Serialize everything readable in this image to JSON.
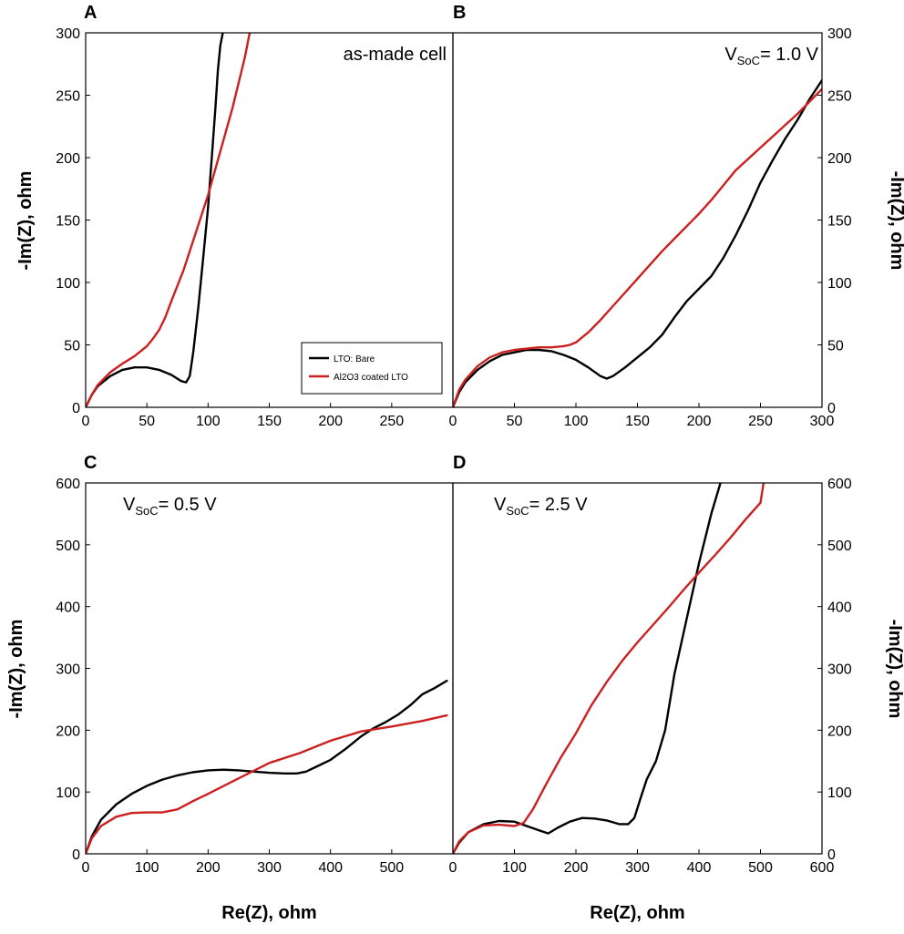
{
  "colors": {
    "bare": "#000000",
    "coated": "#cc1f1f",
    "frame": "#000000"
  },
  "shared": {
    "xlabel": "Re(Z), ohm",
    "ylabel": "-Im(Z), ohm",
    "legend_labels": [
      "LTO: Bare",
      "Al2O3 coated LTO"
    ]
  },
  "chart_data": [
    {
      "panel": "A",
      "type": "line",
      "annotation": "as-made cell",
      "annotation_sub": "",
      "xlim": [
        0,
        300
      ],
      "ylim": [
        0,
        300
      ],
      "xticks": [
        0,
        50,
        100,
        150,
        200,
        250
      ],
      "yticks": [
        0,
        50,
        100,
        150,
        200,
        250,
        300
      ],
      "ytick_side": "left",
      "xlabel_shown": false,
      "legend": "bottom-right",
      "series": [
        {
          "name": "LTO: Bare",
          "color": "#000000",
          "x": [
            0,
            5,
            10,
            20,
            30,
            40,
            50,
            60,
            70,
            78,
            82,
            85,
            88,
            92,
            96,
            100,
            103,
            106,
            108,
            110,
            112
          ],
          "y": [
            0,
            10,
            17,
            25,
            30,
            32,
            32,
            30,
            26,
            21,
            20,
            25,
            45,
            80,
            120,
            160,
            200,
            240,
            270,
            290,
            300
          ]
        },
        {
          "name": "Al2O3 coated LTO",
          "color": "#cc1f1f",
          "x": [
            0,
            5,
            10,
            20,
            30,
            40,
            50,
            55,
            60,
            65,
            70,
            80,
            90,
            100,
            110,
            120,
            130,
            134
          ],
          "y": [
            0,
            10,
            18,
            28,
            35,
            41,
            49,
            55,
            62,
            72,
            85,
            110,
            140,
            170,
            205,
            240,
            280,
            300
          ]
        }
      ]
    },
    {
      "panel": "B",
      "type": "line",
      "annotation": "V",
      "annotation_sub": "SoC",
      "annotation_rest": "= 1.0 V",
      "xlim": [
        0,
        300
      ],
      "ylim": [
        0,
        300
      ],
      "xticks": [
        0,
        50,
        100,
        150,
        200,
        250,
        300
      ],
      "yticks": [
        0,
        50,
        100,
        150,
        200,
        250,
        300
      ],
      "ytick_side": "right",
      "xlabel_shown": false,
      "legend": "none",
      "series": [
        {
          "name": "LTO: Bare",
          "color": "#000000",
          "x": [
            0,
            5,
            10,
            20,
            30,
            40,
            50,
            60,
            70,
            80,
            90,
            100,
            110,
            120,
            125,
            130,
            140,
            150,
            160,
            170,
            180,
            190,
            200,
            210,
            220,
            230,
            240,
            250,
            260,
            270,
            280,
            290,
            300
          ],
          "y": [
            0,
            12,
            20,
            30,
            37,
            42,
            44,
            46,
            46,
            45,
            42,
            38,
            32,
            25,
            23,
            25,
            32,
            40,
            48,
            58,
            72,
            85,
            95,
            105,
            120,
            138,
            158,
            180,
            198,
            215,
            230,
            247,
            262
          ]
        },
        {
          "name": "Al2O3 coated LTO",
          "color": "#cc1f1f",
          "x": [
            0,
            5,
            10,
            20,
            30,
            40,
            50,
            60,
            70,
            80,
            90,
            95,
            100,
            110,
            120,
            130,
            140,
            150,
            160,
            170,
            180,
            190,
            200,
            210,
            220,
            230,
            240,
            250,
            260,
            270,
            280,
            290,
            300
          ],
          "y": [
            0,
            14,
            22,
            33,
            40,
            44,
            46,
            47,
            48,
            48,
            49,
            50,
            52,
            60,
            70,
            81,
            92,
            103,
            114,
            125,
            135,
            145,
            155,
            166,
            178,
            190,
            199,
            208,
            217,
            226,
            235,
            245,
            255
          ]
        }
      ]
    },
    {
      "panel": "C",
      "type": "line",
      "annotation": "V",
      "annotation_sub": "SoC",
      "annotation_rest": "= 0.5 V",
      "xlim": [
        0,
        600
      ],
      "ylim": [
        0,
        600
      ],
      "xticks": [
        0,
        100,
        200,
        300,
        400,
        500
      ],
      "yticks": [
        0,
        100,
        200,
        300,
        400,
        500,
        600
      ],
      "ytick_side": "left",
      "xlabel_shown": true,
      "legend": "none",
      "series": [
        {
          "name": "LTO: Bare",
          "color": "#000000",
          "x": [
            0,
            10,
            25,
            50,
            75,
            100,
            125,
            150,
            175,
            200,
            225,
            250,
            275,
            300,
            325,
            345,
            360,
            375,
            400,
            425,
            450,
            470,
            490,
            510,
            530,
            550,
            570,
            590
          ],
          "y": [
            0,
            28,
            55,
            80,
            97,
            110,
            120,
            127,
            132,
            135,
            136,
            135,
            133,
            131,
            130,
            130,
            133,
            140,
            152,
            170,
            190,
            203,
            213,
            225,
            240,
            258,
            268,
            280
          ]
        },
        {
          "name": "Al2O3 coated LTO",
          "color": "#cc1f1f",
          "x": [
            0,
            10,
            25,
            50,
            75,
            100,
            125,
            150,
            175,
            200,
            250,
            300,
            350,
            400,
            450,
            500,
            550,
            590
          ],
          "y": [
            0,
            25,
            45,
            60,
            66,
            67,
            67,
            72,
            85,
            97,
            122,
            147,
            163,
            183,
            198,
            206,
            215,
            224
          ]
        }
      ]
    },
    {
      "panel": "D",
      "type": "line",
      "annotation": "V",
      "annotation_sub": "SoC",
      "annotation_rest": "= 2.5 V",
      "xlim": [
        0,
        600
      ],
      "ylim": [
        0,
        600
      ],
      "xticks": [
        0,
        100,
        200,
        300,
        400,
        500,
        600
      ],
      "yticks": [
        0,
        100,
        200,
        300,
        400,
        500,
        600
      ],
      "ytick_side": "right",
      "xlabel_shown": true,
      "legend": "none",
      "series": [
        {
          "name": "LTO: Bare",
          "color": "#000000",
          "x": [
            0,
            10,
            25,
            50,
            75,
            100,
            120,
            140,
            155,
            170,
            190,
            210,
            230,
            250,
            270,
            285,
            295,
            305,
            315,
            330,
            345,
            360,
            380,
            400,
            420,
            435
          ],
          "y": [
            0,
            18,
            35,
            48,
            53,
            52,
            45,
            38,
            33,
            42,
            52,
            58,
            57,
            54,
            48,
            48,
            58,
            90,
            120,
            150,
            200,
            290,
            380,
            470,
            550,
            600
          ]
        },
        {
          "name": "Al2O3 coated LTO",
          "color": "#cc1f1f",
          "x": [
            0,
            10,
            25,
            50,
            75,
            100,
            115,
            130,
            150,
            175,
            200,
            225,
            250,
            275,
            300,
            325,
            350,
            375,
            400,
            425,
            450,
            475,
            500,
            505
          ],
          "y": [
            0,
            20,
            35,
            46,
            47,
            45,
            50,
            72,
            110,
            155,
            195,
            240,
            278,
            312,
            342,
            370,
            398,
            427,
            455,
            482,
            510,
            540,
            568,
            600
          ]
        }
      ]
    }
  ]
}
